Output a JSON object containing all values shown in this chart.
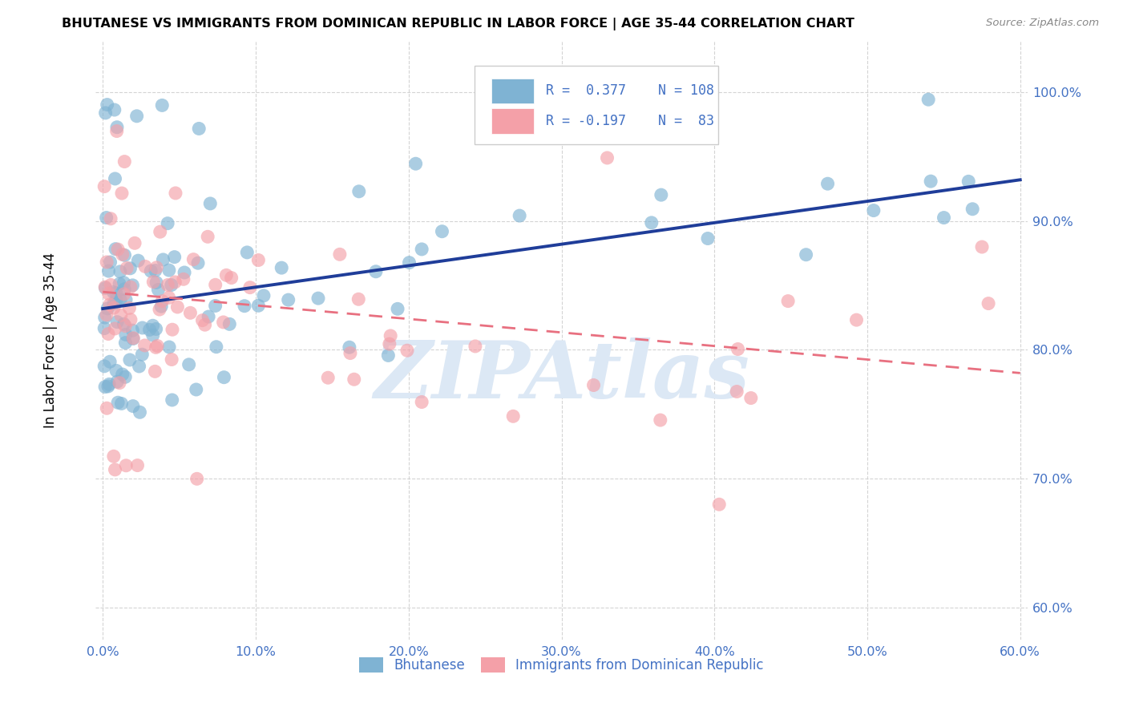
{
  "title": "BHUTANESE VS IMMIGRANTS FROM DOMINICAN REPUBLIC IN LABOR FORCE | AGE 35-44 CORRELATION CHART",
  "source": "Source: ZipAtlas.com",
  "ylabel": "In Labor Force | Age 35-44",
  "xlim": [
    -0.005,
    0.605
  ],
  "ylim": [
    0.575,
    1.04
  ],
  "ytick_labels": [
    "60.0%",
    "70.0%",
    "80.0%",
    "90.0%",
    "100.0%"
  ],
  "ytick_values": [
    0.6,
    0.7,
    0.8,
    0.9,
    1.0
  ],
  "xtick_labels": [
    "0.0%",
    "10.0%",
    "20.0%",
    "30.0%",
    "40.0%",
    "50.0%",
    "60.0%"
  ],
  "xtick_values": [
    0.0,
    0.1,
    0.2,
    0.3,
    0.4,
    0.5,
    0.6
  ],
  "blue_color": "#7fb3d3",
  "pink_color": "#f4a0a8",
  "blue_line_color": "#1f3d99",
  "pink_line_color": "#e87080",
  "axis_color": "#4472c4",
  "legend_R_color": "#4472c4",
  "watermark": "ZIPAtlas",
  "watermark_color": "#dce8f5",
  "background_color": "#ffffff",
  "grid_color": "#d0d0d0",
  "blue_trend_x0": 0.0,
  "blue_trend_y0": 0.832,
  "blue_trend_x1": 0.6,
  "blue_trend_y1": 0.932,
  "pink_trend_x0": 0.0,
  "pink_trend_y0": 0.845,
  "pink_trend_x1": 0.6,
  "pink_trend_y1": 0.782
}
